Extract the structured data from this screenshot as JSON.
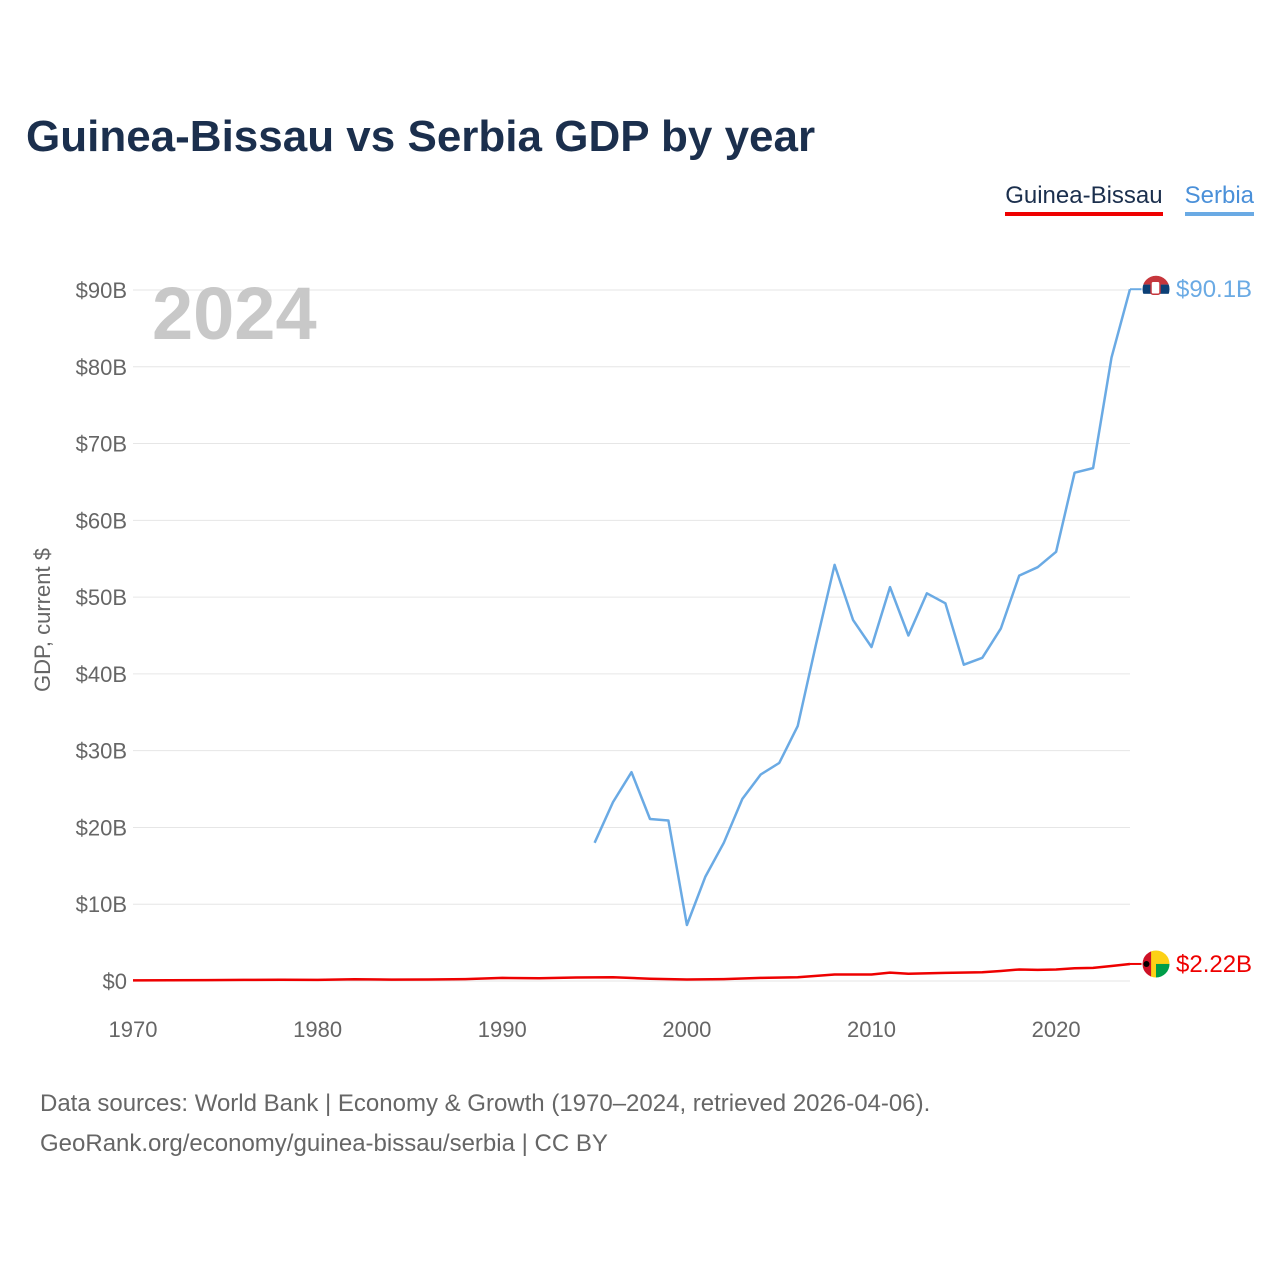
{
  "chart_data": {
    "type": "line",
    "title": "Guinea-Bissau vs Serbia GDP by year",
    "ylabel": "GDP, current $",
    "xlabel": "",
    "xlim": [
      1970,
      2024
    ],
    "ylim": [
      0,
      90
    ],
    "year_badge": "2024",
    "yticks": [
      {
        "value": 0,
        "label": "$0"
      },
      {
        "value": 10,
        "label": "$10B"
      },
      {
        "value": 20,
        "label": "$20B"
      },
      {
        "value": 30,
        "label": "$30B"
      },
      {
        "value": 40,
        "label": "$40B"
      },
      {
        "value": 50,
        "label": "$50B"
      },
      {
        "value": 60,
        "label": "$60B"
      },
      {
        "value": 70,
        "label": "$70B"
      },
      {
        "value": 80,
        "label": "$80B"
      },
      {
        "value": 90,
        "label": "$90B"
      }
    ],
    "xticks": [
      {
        "value": 1970,
        "label": "1970"
      },
      {
        "value": 1980,
        "label": "1980"
      },
      {
        "value": 1990,
        "label": "1990"
      },
      {
        "value": 2000,
        "label": "2000"
      },
      {
        "value": 2010,
        "label": "2010"
      },
      {
        "value": 2020,
        "label": "2020"
      }
    ],
    "series": [
      {
        "name": "Guinea-Bissau",
        "color": "#ee0000",
        "end_label": "$2.22B",
        "flag": "guinea-bissau-flag-icon",
        "x": [
          1970,
          1972,
          1974,
          1976,
          1978,
          1980,
          1982,
          1984,
          1986,
          1988,
          1990,
          1992,
          1994,
          1996,
          1998,
          2000,
          2002,
          2004,
          2006,
          2008,
          2010,
          2011,
          2012,
          2014,
          2016,
          2017,
          2018,
          2019,
          2020,
          2021,
          2022,
          2023,
          2024
        ],
        "values": [
          0.08,
          0.1,
          0.12,
          0.14,
          0.16,
          0.14,
          0.22,
          0.18,
          0.2,
          0.25,
          0.4,
          0.35,
          0.45,
          0.5,
          0.3,
          0.2,
          0.25,
          0.4,
          0.5,
          0.85,
          0.85,
          1.1,
          0.95,
          1.05,
          1.15,
          1.3,
          1.5,
          1.45,
          1.5,
          1.65,
          1.7,
          1.95,
          2.22
        ]
      },
      {
        "name": "Serbia",
        "color": "#6aaae4",
        "end_label": "$90.1B",
        "flag": "serbia-flag-icon",
        "x": [
          1995,
          1996,
          1997,
          1998,
          1999,
          2000,
          2001,
          2002,
          2003,
          2004,
          2005,
          2006,
          2007,
          2008,
          2009,
          2010,
          2011,
          2012,
          2013,
          2014,
          2015,
          2016,
          2017,
          2018,
          2019,
          2020,
          2021,
          2022,
          2023,
          2024
        ],
        "values": [
          18.0,
          23.3,
          27.2,
          21.1,
          20.9,
          7.3,
          13.6,
          18.0,
          23.7,
          26.9,
          28.4,
          33.2,
          43.9,
          54.2,
          47.0,
          43.5,
          51.3,
          45.0,
          50.5,
          49.2,
          41.2,
          42.1,
          45.9,
          52.8,
          53.9,
          55.9,
          66.2,
          66.8,
          81.2,
          90.1
        ]
      }
    ],
    "legend": [
      "Guinea-Bissau",
      "Serbia"
    ],
    "legend_position": "top-right"
  },
  "footer": {
    "source_line1": "Data sources: World Bank | Economy & Growth (1970–2024, retrieved 2026-04-06).",
    "source_line2": "GeoRank.org/economy/guinea-bissau/serbia | CC BY"
  },
  "colors": {
    "title": "#1b2f4d",
    "grid": "#e6e6e6",
    "axis_text": "#666666",
    "year_badge": "#c8c8c8"
  }
}
